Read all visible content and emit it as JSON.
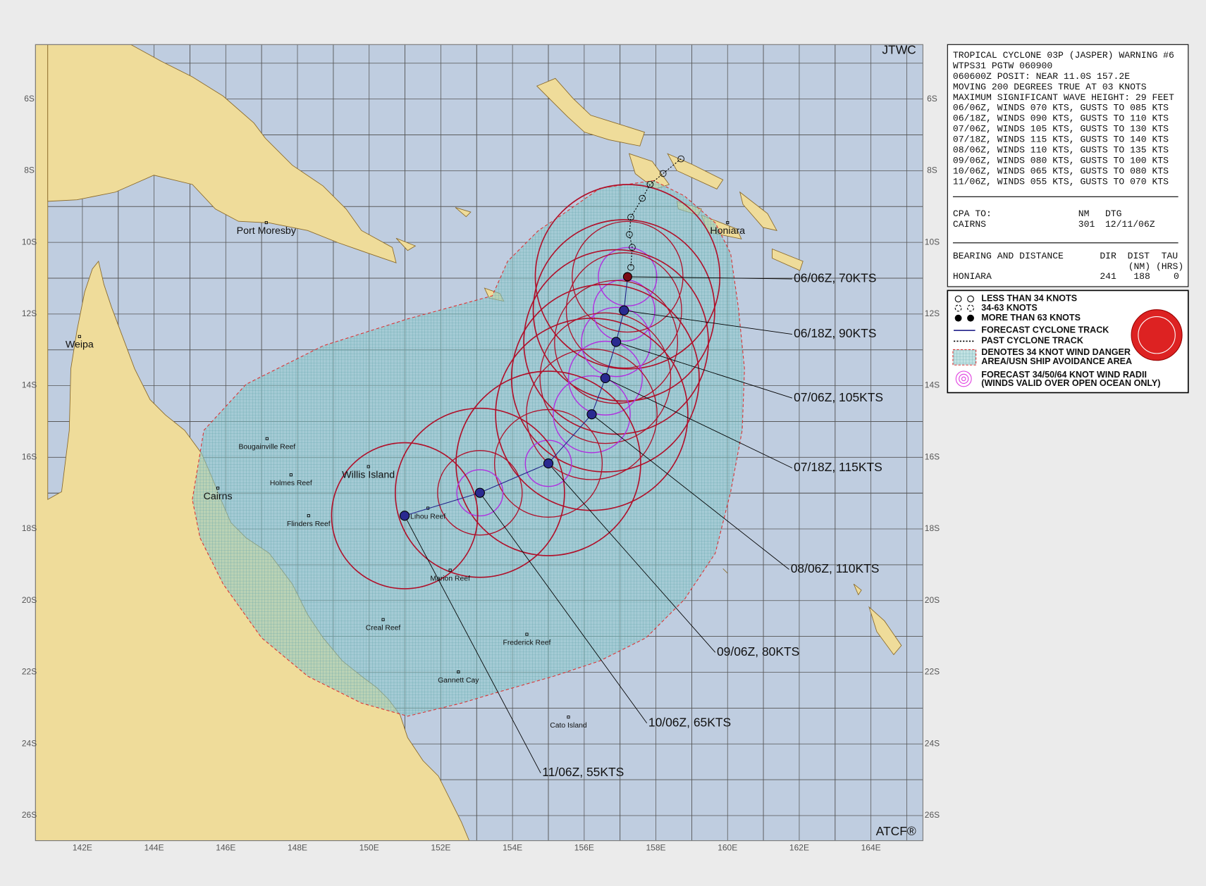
{
  "header": {
    "agency": "JTWC",
    "footer": "ATCF®"
  },
  "map": {
    "lon_range": [
      140.69,
      165.45
    ],
    "lat_range": [
      -4.48,
      -26.7
    ],
    "lon_ticks": [
      {
        "value": 142,
        "label": "142E"
      },
      {
        "value": 144,
        "label": "144E"
      },
      {
        "value": 146,
        "label": "146E"
      },
      {
        "value": 148,
        "label": "148E"
      },
      {
        "value": 150,
        "label": "150E"
      },
      {
        "value": 152,
        "label": "152E"
      },
      {
        "value": 154,
        "label": "154E"
      },
      {
        "value": 156,
        "label": "156E"
      },
      {
        "value": 158,
        "label": "158E"
      },
      {
        "value": 160,
        "label": "160E"
      },
      {
        "value": 162,
        "label": "162E"
      },
      {
        "value": 164,
        "label": "164E"
      }
    ],
    "lat_ticks": [
      {
        "value": -6,
        "label": "6S"
      },
      {
        "value": -8,
        "label": "8S"
      },
      {
        "value": -10,
        "label": "10S"
      },
      {
        "value": -12,
        "label": "12S"
      },
      {
        "value": -14,
        "label": "14S"
      },
      {
        "value": -16,
        "label": "16S"
      },
      {
        "value": -18,
        "label": "18S"
      },
      {
        "value": -20,
        "label": "20S"
      },
      {
        "value": -22,
        "label": "22S"
      },
      {
        "value": -24,
        "label": "24S"
      },
      {
        "value": -26,
        "label": "26S"
      }
    ]
  },
  "places": {
    "cities": [
      {
        "label": "Port Moresby",
        "lat": -9.45,
        "lon": 147.13
      },
      {
        "label": "Honiara",
        "lat": -9.45,
        "lon": 160.0
      },
      {
        "label": "Weipa",
        "lat": -12.63,
        "lon": 141.92
      },
      {
        "label": "Cairns",
        "lat": -16.86,
        "lon": 145.78
      },
      {
        "label": "Willis Island",
        "lat": -16.26,
        "lon": 149.98
      }
    ],
    "reefs": [
      {
        "label": "Bougainville Reef",
        "lat": -15.48,
        "lon": 147.15
      },
      {
        "label": "Holmes Reef",
        "lat": -16.49,
        "lon": 147.82
      },
      {
        "label": "Flinders Reef",
        "lat": -17.63,
        "lon": 148.31
      },
      {
        "label": "Lihou Reef",
        "lat": -17.42,
        "lon": 151.64
      },
      {
        "label": "Marion Reef",
        "lat": -19.15,
        "lon": 152.26
      },
      {
        "label": "Creal Reef",
        "lat": -20.53,
        "lon": 150.39
      },
      {
        "label": "Frederick Reef",
        "lat": -20.94,
        "lon": 154.4
      },
      {
        "label": "Gannett Cay",
        "lat": -21.99,
        "lon": 152.49
      },
      {
        "label": "Cato Island",
        "lat": -23.25,
        "lon": 155.56
      }
    ]
  },
  "forecast": {
    "labels": [
      "06/06Z, 70KTS",
      "06/18Z, 90KTS",
      "07/06Z, 105KTS",
      "07/18Z, 115KTS",
      "08/06Z, 110KTS",
      "09/06Z, 80KTS",
      "10/06Z, 65KTS",
      "11/06Z, 55KTS"
    ],
    "lat": [
      -10.96,
      -11.9,
      -12.78,
      -13.79,
      -14.8,
      -16.17,
      -16.99,
      -17.63
    ],
    "lon": [
      157.21,
      157.11,
      156.89,
      156.59,
      156.21,
      155.0,
      153.09,
      150.99
    ]
  },
  "past_track": {
    "lat": [
      -7.67,
      -8.08,
      -8.38,
      -8.77,
      -9.3,
      -9.78,
      -10.14,
      -10.7
    ],
    "lon": [
      158.7,
      158.2,
      157.84,
      157.62,
      157.3,
      157.26,
      157.34,
      157.3
    ]
  },
  "warning": {
    "lines": [
      "TROPICAL CYCLONE 03P (JASPER) WARNING #6",
      "WTPS31 PGTW 060900",
      "060600Z POSIT: NEAR 11.0S 157.2E",
      "MOVING 200 DEGREES TRUE AT 03 KNOTS",
      "MAXIMUM SIGNIFICANT WAVE HEIGHT: 29 FEET",
      "06/06Z, WINDS 070 KTS, GUSTS TO 085 KTS",
      "06/18Z, WINDS 090 KTS, GUSTS TO 110 KTS",
      "07/06Z, WINDS 105 KTS, GUSTS TO 130 KTS",
      "07/18Z, WINDS 115 KTS, GUSTS TO 140 KTS",
      "08/06Z, WINDS 110 KTS, GUSTS TO 135 KTS",
      "09/06Z, WINDS 080 KTS, GUSTS TO 100 KTS",
      "10/06Z, WINDS 065 KTS, GUSTS TO 080 KTS",
      "11/06Z, WINDS 055 KTS, GUSTS TO 070 KTS"
    ],
    "cpa": {
      "headers": [
        "CPA TO:",
        "NM",
        "DTG"
      ],
      "row": [
        "CAIRNS",
        "301",
        "12/11/06Z"
      ]
    },
    "bearing": {
      "headers": [
        "BEARING AND DISTANCE",
        "DIR",
        "DIST",
        "TAU"
      ],
      "units": [
        "(NM)",
        "(HRS)"
      ],
      "row": [
        "HONIARA",
        "241",
        "188",
        "0"
      ]
    }
  },
  "legend": [
    "LESS THAN 34 KNOTS",
    "34-63 KNOTS",
    "MORE THAN 63 KNOTS",
    "FORECAST CYCLONE TRACK",
    "PAST CYCLONE TRACK",
    "DENOTES 34 KNOT WIND DANGER",
    "AREA/USN SHIP AVOIDANCE AREA",
    "FORECAST 34/50/64 KNOT WIND RADII",
    "(WINDS VALID OVER OPEN OCEAN ONLY)"
  ]
}
